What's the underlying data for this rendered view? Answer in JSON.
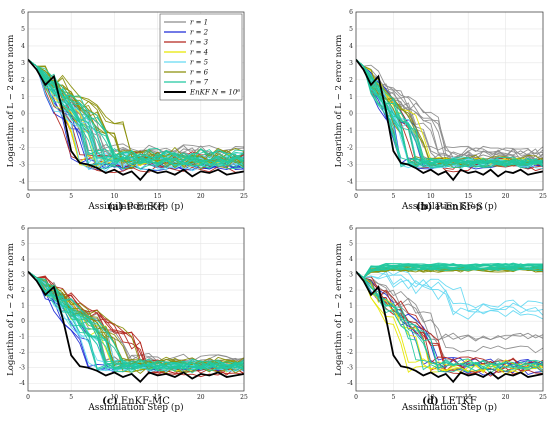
{
  "figure": {
    "xlabel": "Assimilation Step (p)",
    "ylabel": "Logarithm of L − 2 error norm",
    "xticks": [
      0,
      5,
      10,
      15,
      20,
      25
    ],
    "yticks": [
      -4,
      -3,
      -2,
      -1,
      0,
      1,
      2,
      3,
      4,
      5,
      6
    ],
    "xlim": [
      0,
      25
    ],
    "ylim": [
      -4.5,
      6
    ]
  },
  "legend": {
    "entries": [
      {
        "label": "r = 1",
        "color": "#8c8c8c"
      },
      {
        "label": "r = 2",
        "color": "#1f2bd6"
      },
      {
        "label": "r = 3",
        "color": "#b3261e"
      },
      {
        "label": "r = 4",
        "color": "#e6e600"
      },
      {
        "label": "r = 5",
        "color": "#66d9f2"
      },
      {
        "label": "r = 6",
        "color": "#8a8f0a"
      },
      {
        "label": "r = 7",
        "color": "#22c8a0"
      },
      {
        "label": "EnKF N = 10⁶",
        "color": "#000000"
      }
    ]
  },
  "panels": [
    {
      "letter": "(a)",
      "name": "P-EnKF"
    },
    {
      "letter": "(b)",
      "name": "P-EnKF-S"
    },
    {
      "letter": "(c)",
      "name": "EnKF-MC"
    },
    {
      "letter": "(d)",
      "name": "LETKF"
    }
  ],
  "chart_data": [
    {
      "type": "line",
      "title": "(a) P-EnKF",
      "xlabel": "Assimilation Step (p)",
      "ylabel": "Logarithm of L − 2 error norm",
      "xlim": [
        0,
        25
      ],
      "ylim": [
        -4.5,
        6
      ],
      "grid": true,
      "legend": "top-right",
      "reference": {
        "name": "EnKF N = 10⁶",
        "x": [
          0,
          1,
          2,
          3,
          4,
          5,
          6,
          7,
          8,
          9,
          10,
          11,
          12,
          13,
          14,
          15,
          16,
          17,
          18,
          19,
          20,
          21,
          22,
          23,
          24,
          25
        ],
        "values": [
          3.2,
          2.6,
          1.7,
          2.2,
          0.2,
          -2.2,
          -2.9,
          -3.0,
          -3.2,
          -3.5,
          -3.3,
          -3.6,
          -3.4,
          -3.9,
          -3.3,
          -3.5,
          -3.4,
          -3.6,
          -3.3,
          -3.7,
          -3.4,
          -3.5,
          -3.3,
          -3.6,
          -3.5,
          -3.4
        ]
      },
      "series": [
        {
          "name": "r = 1",
          "color": "#8c8c8c",
          "count": 8,
          "start": 3.2,
          "drop": 7,
          "final": -2.5,
          "spread": 0.5,
          "noise": 0.35,
          "seed": 11
        },
        {
          "name": "r = 2",
          "color": "#1f2bd6",
          "count": 5,
          "start": 3.2,
          "drop": 5,
          "final": -2.9,
          "spread": 0.3,
          "noise": 0.25,
          "seed": 12
        },
        {
          "name": "r = 3",
          "color": "#b3261e",
          "count": 6,
          "start": 3.2,
          "drop": 5,
          "final": -2.8,
          "spread": 0.4,
          "noise": 0.3,
          "seed": 13
        },
        {
          "name": "r = 4",
          "color": "#e6e600",
          "count": 4,
          "start": 3.2,
          "drop": 6,
          "final": -2.7,
          "spread": 0.4,
          "noise": 0.3,
          "seed": 14
        },
        {
          "name": "r = 5",
          "color": "#66d9f2",
          "count": 8,
          "start": 3.2,
          "drop": 6,
          "final": -2.8,
          "spread": 0.4,
          "noise": 0.3,
          "seed": 15
        },
        {
          "name": "r = 6",
          "color": "#8a8f0a",
          "count": 8,
          "start": 3.2,
          "drop": 9,
          "final": -2.5,
          "spread": 0.5,
          "noise": 0.35,
          "seed": 16
        },
        {
          "name": "r = 7",
          "color": "#22c8a0",
          "count": 14,
          "start": 3.2,
          "drop": 7,
          "final": -2.7,
          "spread": 0.4,
          "noise": 0.35,
          "seed": 17
        }
      ]
    },
    {
      "type": "line",
      "title": "(b) P-EnKF-S",
      "xlabel": "Assimilation Step (p)",
      "ylabel": "Logarithm of L − 2 error norm",
      "xlim": [
        0,
        25
      ],
      "ylim": [
        -4.5,
        6
      ],
      "grid": true,
      "reference": {
        "name": "EnKF N = 10⁶",
        "x": [
          0,
          1,
          2,
          3,
          4,
          5,
          6,
          7,
          8,
          9,
          10,
          11,
          12,
          13,
          14,
          15,
          16,
          17,
          18,
          19,
          20,
          21,
          22,
          23,
          24,
          25
        ],
        "values": [
          3.2,
          2.6,
          1.7,
          2.2,
          0.2,
          -2.2,
          -2.9,
          -3.0,
          -3.2,
          -3.5,
          -3.3,
          -3.6,
          -3.4,
          -3.9,
          -3.3,
          -3.5,
          -3.4,
          -3.6,
          -3.3,
          -3.7,
          -3.4,
          -3.5,
          -3.3,
          -3.6,
          -3.5,
          -3.4
        ]
      },
      "series": [
        {
          "name": "r = 1",
          "color": "#8c8c8c",
          "count": 10,
          "start": 3.2,
          "drop": 9,
          "final": -2.4,
          "spread": 0.3,
          "noise": 0.35,
          "seed": 21
        },
        {
          "name": "r = 2",
          "color": "#1f2bd6",
          "count": 5,
          "start": 3.2,
          "drop": 6,
          "final": -2.9,
          "spread": 0.2,
          "noise": 0.2,
          "seed": 22
        },
        {
          "name": "r = 3",
          "color": "#b3261e",
          "count": 4,
          "start": 3.2,
          "drop": 6,
          "final": -3.0,
          "spread": 0.2,
          "noise": 0.25,
          "seed": 23
        },
        {
          "name": "r = 4",
          "color": "#e6e600",
          "count": 3,
          "start": 3.2,
          "drop": 7,
          "final": -2.9,
          "spread": 0.2,
          "noise": 0.2,
          "seed": 24
        },
        {
          "name": "r = 5",
          "color": "#66d9f2",
          "count": 8,
          "start": 3.2,
          "drop": 6,
          "final": -2.9,
          "spread": 0.2,
          "noise": 0.2,
          "seed": 25
        },
        {
          "name": "r = 6",
          "color": "#8a8f0a",
          "count": 4,
          "start": 3.2,
          "drop": 7,
          "final": -2.8,
          "spread": 0.2,
          "noise": 0.2,
          "seed": 26
        },
        {
          "name": "r = 7",
          "color": "#22c8a0",
          "count": 14,
          "start": 3.2,
          "drop": 6,
          "final": -2.9,
          "spread": 0.2,
          "noise": 0.2,
          "seed": 27
        }
      ]
    },
    {
      "type": "line",
      "title": "(c) EnKF-MC",
      "xlabel": "Assimilation Step (p)",
      "ylabel": "Logarithm of L − 2 error norm",
      "xlim": [
        0,
        25
      ],
      "ylim": [
        -4.5,
        6
      ],
      "grid": true,
      "reference": {
        "name": "EnKF N = 10⁶",
        "x": [
          0,
          1,
          2,
          3,
          4,
          5,
          6,
          7,
          8,
          9,
          10,
          11,
          12,
          13,
          14,
          15,
          16,
          17,
          18,
          19,
          20,
          21,
          22,
          23,
          24,
          25
        ],
        "values": [
          3.2,
          2.6,
          1.7,
          2.2,
          0.2,
          -2.2,
          -2.9,
          -3.0,
          -3.2,
          -3.5,
          -3.3,
          -3.6,
          -3.4,
          -3.9,
          -3.3,
          -3.5,
          -3.4,
          -3.6,
          -3.3,
          -3.7,
          -3.4,
          -3.5,
          -3.3,
          -3.6,
          -3.5,
          -3.4
        ]
      },
      "series": [
        {
          "name": "r = 1",
          "color": "#8c8c8c",
          "count": 6,
          "start": 3.2,
          "drop": 9,
          "final": -2.7,
          "spread": 0.3,
          "noise": 0.35,
          "seed": 31
        },
        {
          "name": "r = 2",
          "color": "#1f2bd6",
          "count": 4,
          "start": 3.2,
          "drop": 7,
          "final": -3.0,
          "spread": 0.2,
          "noise": 0.25,
          "seed": 32
        },
        {
          "name": "r = 3",
          "color": "#b3261e",
          "count": 5,
          "start": 3.2,
          "drop": 11,
          "final": -3.0,
          "spread": 0.3,
          "noise": 0.3,
          "seed": 33
        },
        {
          "name": "r = 4",
          "color": "#e6e600",
          "count": 3,
          "start": 3.2,
          "drop": 8,
          "final": -2.9,
          "spread": 0.2,
          "noise": 0.25,
          "seed": 34
        },
        {
          "name": "r = 5",
          "color": "#66d9f2",
          "count": 8,
          "start": 3.2,
          "drop": 7,
          "final": -2.9,
          "spread": 0.2,
          "noise": 0.25,
          "seed": 35
        },
        {
          "name": "r = 6",
          "color": "#8a8f0a",
          "count": 7,
          "start": 3.2,
          "drop": 10,
          "final": -2.8,
          "spread": 0.3,
          "noise": 0.3,
          "seed": 36
        },
        {
          "name": "r = 7",
          "color": "#22c8a0",
          "count": 14,
          "start": 3.2,
          "drop": 8,
          "final": -2.9,
          "spread": 0.2,
          "noise": 0.3,
          "seed": 37
        }
      ]
    },
    {
      "type": "line",
      "title": "(d) LETKF",
      "xlabel": "Assimilation Step (p)",
      "ylabel": "Logarithm of L − 2 error norm",
      "xlim": [
        0,
        25
      ],
      "ylim": [
        -4.5,
        6
      ],
      "grid": true,
      "reference": {
        "name": "EnKF N = 10⁶",
        "x": [
          0,
          1,
          2,
          3,
          4,
          5,
          6,
          7,
          8,
          9,
          10,
          11,
          12,
          13,
          14,
          15,
          16,
          17,
          18,
          19,
          20,
          21,
          22,
          23,
          24,
          25
        ],
        "values": [
          3.2,
          2.6,
          1.7,
          2.2,
          0.2,
          -2.2,
          -2.9,
          -3.0,
          -3.2,
          -3.5,
          -3.3,
          -3.6,
          -3.4,
          -3.9,
          -3.3,
          -3.5,
          -3.4,
          -3.6,
          -3.3,
          -3.7,
          -3.4,
          -3.5,
          -3.3,
          -3.6,
          -3.5,
          -3.4
        ]
      },
      "series": [
        {
          "name": "r = 1",
          "color": "#8c8c8c",
          "count": 4,
          "start": 3.2,
          "drop": 10,
          "final": -2.0,
          "spread": 1.0,
          "noise": 0.3,
          "seed": 41
        },
        {
          "name": "r = 2",
          "color": "#1f2bd6",
          "count": 4,
          "start": 3.2,
          "drop": 8,
          "final": -2.9,
          "spread": 0.4,
          "noise": 0.3,
          "seed": 42
        },
        {
          "name": "r = 3",
          "color": "#b3261e",
          "count": 5,
          "start": 3.2,
          "drop": 9,
          "final": -2.8,
          "spread": 0.5,
          "noise": 0.3,
          "seed": 43
        },
        {
          "name": "r = 4",
          "color": "#e6e600",
          "count": 4,
          "start": 3.2,
          "drop": 7,
          "final": -3.0,
          "spread": 0.3,
          "noise": 0.3,
          "seed": 44
        },
        {
          "name": "r = 5",
          "color": "#66d9f2",
          "count": 4,
          "start": 3.2,
          "drop": 12,
          "final": 0.8,
          "spread": 0.4,
          "noise": 0.3,
          "seed": 45
        },
        {
          "name": "r = 6",
          "color": "#8a8f0a",
          "count": 8,
          "start": 3.2,
          "drop": 6,
          "final": 3.4,
          "spread": 0.2,
          "noise": 0.25,
          "seed": 46,
          "flat": true
        },
        {
          "name": "r = 7",
          "color": "#22c8a0",
          "count": 16,
          "start": 3.2,
          "drop": 5,
          "final": 3.5,
          "spread": 0.15,
          "noise": 0.2,
          "seed": 47,
          "flat": true
        },
        {
          "name": "r = 7",
          "color": "#22c8a0",
          "count": 6,
          "start": 3.2,
          "drop": 8,
          "final": -2.9,
          "spread": 0.4,
          "noise": 0.3,
          "seed": 48
        }
      ]
    }
  ]
}
